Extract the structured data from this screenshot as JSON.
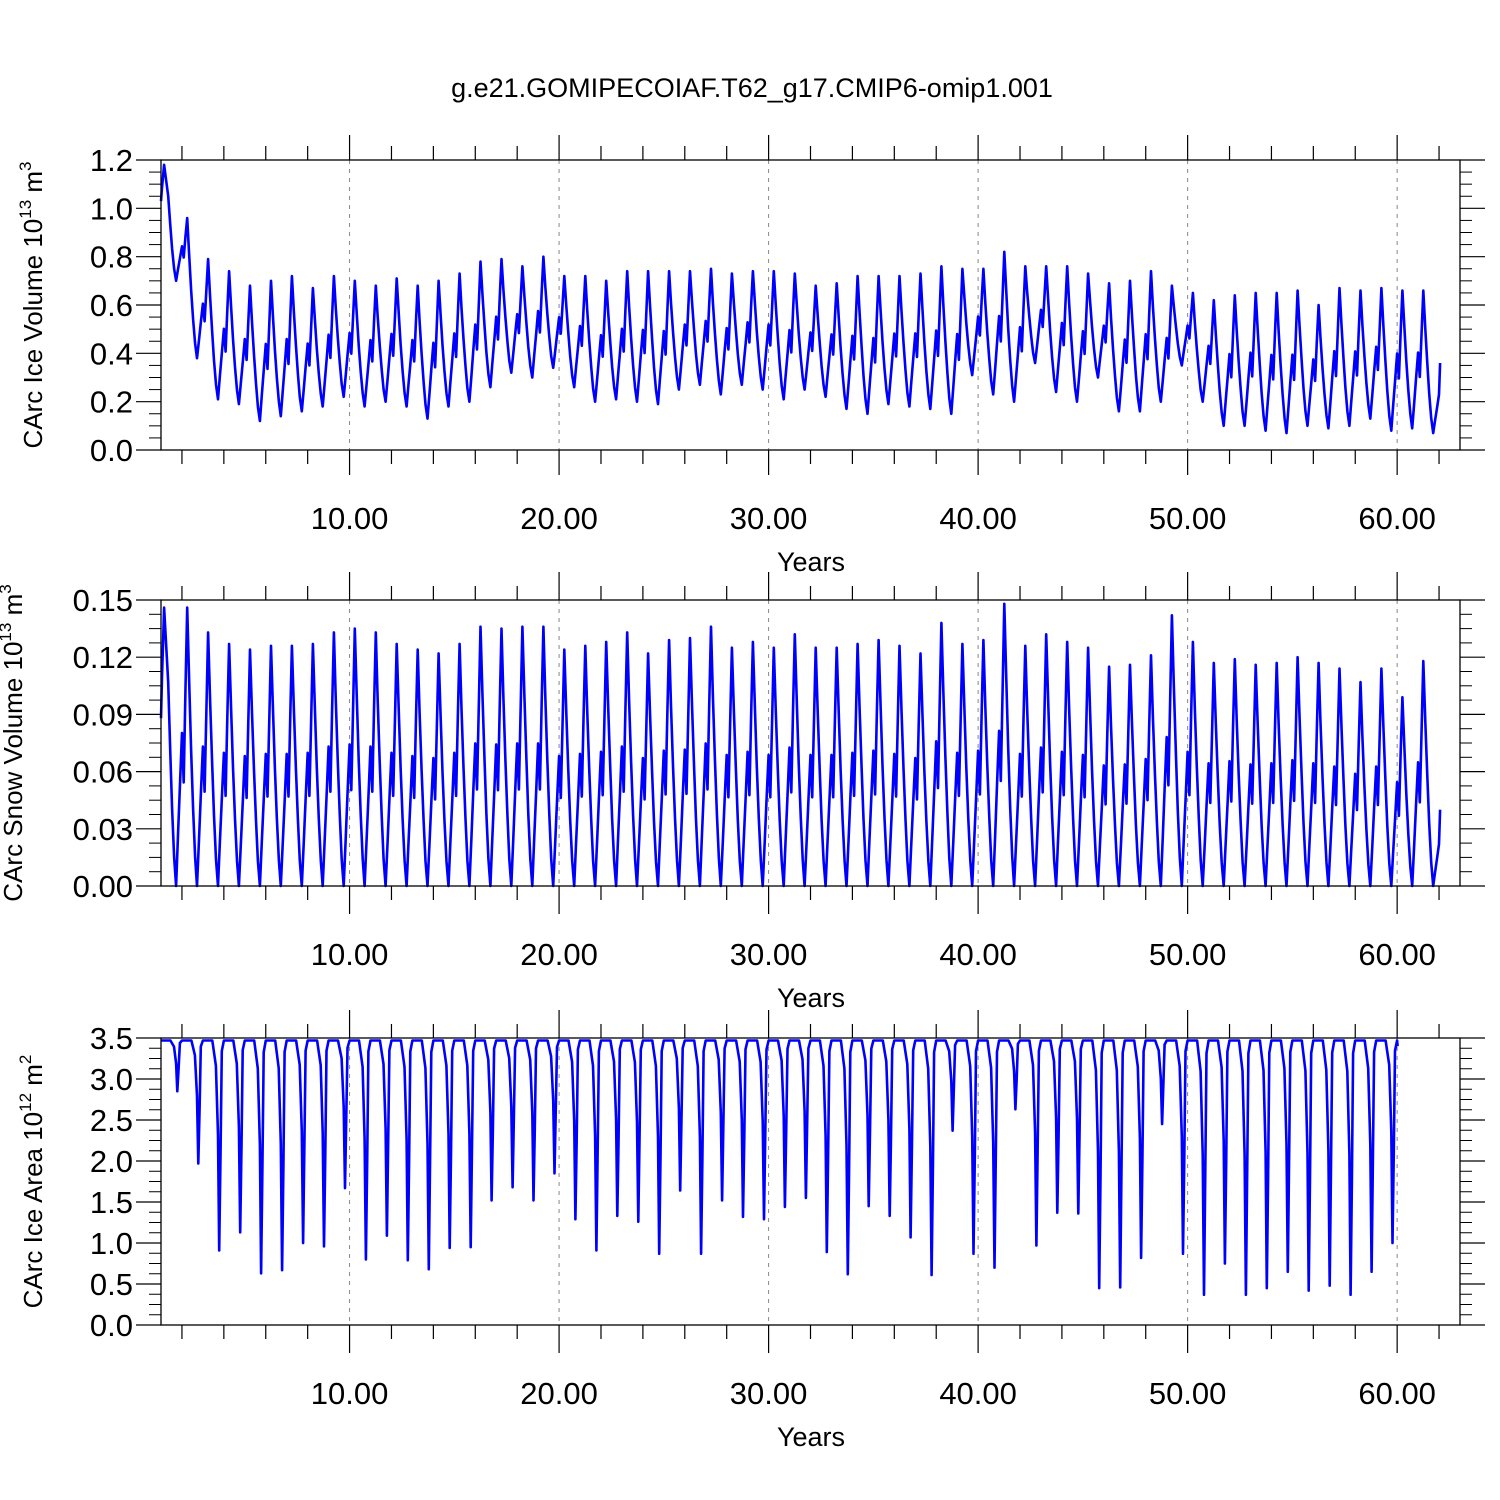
{
  "title": "g.e21.GOMIPECOIAF.T62_g17.CMIP6-omip1.001",
  "chart_data": [
    {
      "type": "line",
      "title": "g.e21.GOMIPECOIAF.T62_g17.CMIP6-omip1.001",
      "xlabel": "Years",
      "ylabel_main": "CArc Ice Volume 10",
      "ylabel_sup1": "13",
      "ylabel_mid": " m",
      "ylabel_sup2": "3",
      "xlim": [
        1,
        63
      ],
      "ylim": [
        0,
        1.2
      ],
      "xticks": [
        10,
        20,
        30,
        40,
        50,
        60
      ],
      "xtick_labels": [
        "10.00",
        "20.00",
        "30.00",
        "40.00",
        "50.00",
        "60.00"
      ],
      "yticks": [
        0,
        0.2,
        0.4,
        0.6,
        0.8,
        1.0,
        1.2
      ],
      "ytick_labels": [
        "0.0",
        "0.2",
        "0.4",
        "0.6",
        "0.8",
        "1.0",
        "1.2"
      ],
      "grid": "vertical dashed at major x ticks",
      "color": "#0000ff",
      "series": [
        {
          "kind": "seasonal",
          "start": 1.03,
          "maxima": [
            1.18,
            0.96,
            0.79,
            0.74,
            0.68,
            0.7,
            0.72,
            0.67,
            0.72,
            0.7,
            0.68,
            0.71,
            0.68,
            0.7,
            0.73,
            0.78,
            0.79,
            0.76,
            0.8,
            0.72,
            0.72,
            0.7,
            0.74,
            0.74,
            0.74,
            0.74,
            0.75,
            0.73,
            0.74,
            0.74,
            0.73,
            0.68,
            0.69,
            0.72,
            0.72,
            0.72,
            0.73,
            0.76,
            0.75,
            0.75,
            0.82,
            0.76,
            0.76,
            0.76,
            0.73,
            0.69,
            0.7,
            0.74,
            0.68,
            0.65,
            0.62,
            0.64,
            0.65,
            0.65,
            0.66,
            0.6,
            0.67,
            0.66,
            0.67,
            0.66,
            0.66
          ],
          "minima": [
            0.7,
            0.38,
            0.21,
            0.19,
            0.12,
            0.14,
            0.16,
            0.18,
            0.22,
            0.18,
            0.2,
            0.18,
            0.13,
            0.18,
            0.2,
            0.26,
            0.32,
            0.3,
            0.34,
            0.26,
            0.2,
            0.21,
            0.2,
            0.19,
            0.25,
            0.27,
            0.23,
            0.27,
            0.25,
            0.21,
            0.25,
            0.22,
            0.17,
            0.15,
            0.19,
            0.18,
            0.17,
            0.15,
            0.31,
            0.23,
            0.2,
            0.36,
            0.24,
            0.2,
            0.3,
            0.16,
            0.16,
            0.2,
            0.35,
            0.2,
            0.1,
            0.1,
            0.08,
            0.07,
            0.1,
            0.09,
            0.1,
            0.13,
            0.08,
            0.09,
            0.07,
            0.14
          ],
          "end": 0.36
        }
      ]
    },
    {
      "type": "line",
      "xlabel": "Years",
      "ylabel_main": "CArc Snow Volume 10",
      "ylabel_sup1": "13",
      "ylabel_mid": " m",
      "ylabel_sup2": "3",
      "xlim": [
        1,
        63
      ],
      "ylim": [
        0,
        0.15
      ],
      "xticks": [
        10,
        20,
        30,
        40,
        50,
        60
      ],
      "xtick_labels": [
        "10.00",
        "20.00",
        "30.00",
        "40.00",
        "50.00",
        "60.00"
      ],
      "yticks": [
        0,
        0.03,
        0.06,
        0.09,
        0.12,
        0.15
      ],
      "ytick_labels": [
        "0.00",
        "0.03",
        "0.06",
        "0.09",
        "0.12",
        "0.15"
      ],
      "grid": "vertical dashed at major x ticks",
      "color": "#0000ff",
      "series": [
        {
          "kind": "seasonal",
          "start": 0.088,
          "maxima": [
            0.146,
            0.146,
            0.133,
            0.127,
            0.124,
            0.126,
            0.126,
            0.127,
            0.133,
            0.135,
            0.133,
            0.127,
            0.124,
            0.122,
            0.127,
            0.136,
            0.135,
            0.136,
            0.136,
            0.124,
            0.126,
            0.128,
            0.133,
            0.122,
            0.129,
            0.13,
            0.136,
            0.125,
            0.128,
            0.125,
            0.132,
            0.125,
            0.125,
            0.127,
            0.129,
            0.126,
            0.122,
            0.138,
            0.127,
            0.129,
            0.148,
            0.126,
            0.132,
            0.128,
            0.125,
            0.115,
            0.116,
            0.121,
            0.142,
            0.128,
            0.117,
            0.119,
            0.116,
            0.117,
            0.12,
            0.117,
            0.114,
            0.107,
            0.114,
            0.099,
            0.118
          ],
          "minima": [
            0.0,
            0.0,
            0.0,
            0.0,
            0.0,
            0.0,
            0.0,
            0.0,
            0.0,
            0.0,
            0.0,
            0.0,
            0.0,
            0.0,
            0.0,
            0.0,
            0.0,
            0.0,
            0.0,
            0.0,
            0.0,
            0.0,
            0.0,
            0.0,
            0.0,
            0.0,
            0.0,
            0.0,
            0.0,
            0.0,
            0.0,
            0.0,
            0.0,
            0.0,
            0.0,
            0.0,
            0.0,
            0.0,
            0.0,
            0.0,
            0.0,
            0.0,
            0.0,
            0.0,
            0.0,
            0.0,
            0.0,
            0.0,
            0.0,
            0.0,
            0.0,
            0.0,
            0.0,
            0.0,
            0.0,
            0.0,
            0.0,
            0.0,
            0.0,
            0.0,
            0.0,
            0.0
          ],
          "end": 0.04
        }
      ]
    },
    {
      "type": "line",
      "xlabel": "Years",
      "ylabel_main": "CArc Ice Area 10",
      "ylabel_sup1": "12",
      "ylabel_mid": " m",
      "ylabel_sup2": "2",
      "xlim": [
        1,
        63
      ],
      "ylim": [
        0,
        3.5
      ],
      "xticks": [
        10,
        20,
        30,
        40,
        50,
        60
      ],
      "xtick_labels": [
        "10.00",
        "20.00",
        "30.00",
        "40.00",
        "50.00",
        "60.00"
      ],
      "yticks": [
        0,
        0.5,
        1.0,
        1.5,
        2.0,
        2.5,
        3.0,
        3.5
      ],
      "ytick_labels": [
        "0.0",
        "0.5",
        "1.0",
        "1.5",
        "2.0",
        "2.5",
        "3.0",
        "3.5"
      ],
      "grid": "vertical dashed at major x ticks",
      "color": "#0000ff",
      "series": [
        {
          "kind": "seasonal_inverted",
          "start": 3.47,
          "plateau": 3.47,
          "minima": [
            2.85,
            1.97,
            0.91,
            1.13,
            0.63,
            0.67,
            1.0,
            0.96,
            1.67,
            0.8,
            1.09,
            0.79,
            0.68,
            0.94,
            0.95,
            1.52,
            1.68,
            1.52,
            1.85,
            1.29,
            0.91,
            1.33,
            1.26,
            0.87,
            1.64,
            0.87,
            1.52,
            1.32,
            1.29,
            1.44,
            1.55,
            0.89,
            0.62,
            1.45,
            1.33,
            1.07,
            0.61,
            2.37,
            0.87,
            0.7,
            2.63,
            0.97,
            1.37,
            1.36,
            0.45,
            0.46,
            0.82,
            2.45,
            0.87,
            0.37,
            0.75,
            0.37,
            0.45,
            0.65,
            0.42,
            0.48,
            0.37,
            0.65,
            1.0
          ],
          "end": 3.4
        }
      ]
    }
  ]
}
